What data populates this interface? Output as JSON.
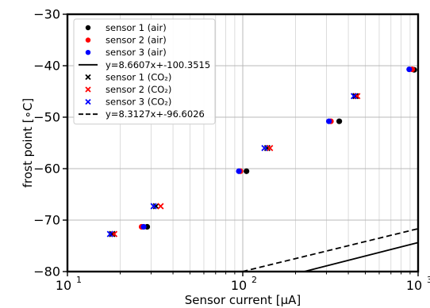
{
  "chart_data": {
    "type": "scatter",
    "title": "",
    "xlabel": "Sensor current [μA]",
    "ylabel": "frost point [∘C]",
    "xscale": "log",
    "xlim": [
      10,
      1000
    ],
    "ylim": [
      -80,
      -30
    ],
    "grid": true,
    "legend_position": "top-left",
    "x_tick_labels": [
      "10¹",
      "10²",
      "10³"
    ],
    "y_ticks": [
      -80,
      -70,
      -60,
      -50,
      -40,
      -30
    ],
    "y_tick_labels": [
      "−80",
      "−70",
      "−60",
      "−50",
      "−40",
      "−30"
    ],
    "series": [
      {
        "name": "sensor 1 (air)",
        "marker": "circle",
        "color": "#000000",
        "points": [
          {
            "x": 28.5,
            "y": -71.3
          },
          {
            "x": 105,
            "y": -60.5
          },
          {
            "x": 355,
            "y": -50.8
          },
          {
            "x": 950,
            "y": -40.8
          }
        ]
      },
      {
        "name": "sensor 2 (air)",
        "marker": "circle",
        "color": "#ff0000",
        "points": [
          {
            "x": 26.5,
            "y": -71.3
          },
          {
            "x": 97,
            "y": -60.5
          },
          {
            "x": 318,
            "y": -50.8
          },
          {
            "x": 925,
            "y": -40.7
          }
        ]
      },
      {
        "name": "sensor 3 (air)",
        "marker": "circle",
        "color": "#0000ff",
        "points": [
          {
            "x": 27.2,
            "y": -71.3
          },
          {
            "x": 95,
            "y": -60.5
          },
          {
            "x": 310,
            "y": -50.8
          },
          {
            "x": 890,
            "y": -40.7
          }
        ]
      },
      {
        "name": "y=8.6607x+-100.3515",
        "type": "line",
        "style": "solid",
        "color": "#000000",
        "slope": 8.6607,
        "intercept": -100.3515
      },
      {
        "name": "sensor 1 (CO₂)",
        "marker": "x",
        "color": "#000000",
        "points": [
          {
            "x": 18,
            "y": -72.7
          },
          {
            "x": 32,
            "y": -67.3
          },
          {
            "x": 138,
            "y": -56.0
          },
          {
            "x": 440,
            "y": -45.9
          }
        ]
      },
      {
        "name": "sensor 2 (CO₂)",
        "marker": "x",
        "color": "#ff0000",
        "points": [
          {
            "x": 18.5,
            "y": -72.7
          },
          {
            "x": 34,
            "y": -67.3
          },
          {
            "x": 143,
            "y": -56.0
          },
          {
            "x": 450,
            "y": -45.9
          }
        ]
      },
      {
        "name": "sensor 3 (CO₂)",
        "marker": "x",
        "color": "#0000ff",
        "points": [
          {
            "x": 17.5,
            "y": -72.7
          },
          {
            "x": 31,
            "y": -67.3
          },
          {
            "x": 133,
            "y": -56.0
          },
          {
            "x": 430,
            "y": -45.9
          }
        ]
      },
      {
        "name": "y=8.3127x+-96.6026",
        "type": "line",
        "style": "dashed",
        "color": "#000000",
        "slope": 8.3127,
        "intercept": -96.6026
      }
    ]
  }
}
